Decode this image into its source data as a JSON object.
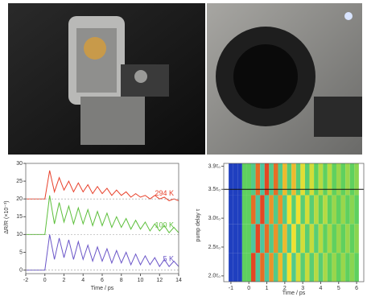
{
  "chart_data": [
    {
      "type": "line",
      "ylabel": "ΔR/R (×10⁻³)",
      "xlabel": "Time / ps",
      "xlim": [
        -2,
        14
      ],
      "xticks": [
        -2,
        0,
        2,
        4,
        6,
        8,
        10,
        12,
        14
      ],
      "ylim": [
        -1,
        30
      ],
      "yticks": [
        0,
        5,
        10,
        15,
        20,
        25,
        30
      ],
      "reference_lines": [
        20,
        10,
        0
      ],
      "x": [
        -2,
        -1.5,
        -1,
        -0.5,
        0,
        0.5,
        1,
        1.5,
        2,
        2.5,
        3,
        3.5,
        4,
        4.5,
        5,
        5.5,
        6,
        6.5,
        7,
        7.5,
        8,
        8.5,
        9,
        9.5,
        10,
        10.5,
        11,
        11.5,
        12,
        12.5,
        13,
        13.5,
        14
      ],
      "series": [
        {
          "name": "294 K",
          "color": "#e8402a",
          "values": [
            20,
            20,
            20,
            20,
            20,
            28,
            22,
            26,
            22.5,
            25,
            22,
            24.5,
            22,
            24,
            21.5,
            23.5,
            21.5,
            23,
            21,
            22.5,
            21,
            22,
            20.5,
            21.5,
            20.5,
            21,
            20,
            21,
            20,
            20.5,
            19.5,
            20,
            19.5
          ]
        },
        {
          "name": "100 K",
          "color": "#5cbf3a",
          "values": [
            10,
            10,
            10,
            10,
            10,
            21,
            13,
            19,
            13.5,
            18,
            13,
            17.5,
            13,
            17,
            12.5,
            16.5,
            12.5,
            16,
            12,
            15,
            12,
            14.5,
            11.5,
            14,
            11.5,
            13.5,
            11,
            13,
            11,
            12.5,
            10.5,
            12,
            10.5
          ]
        },
        {
          "name": "5 K",
          "color": "#6a55c8",
          "values": [
            0,
            0,
            0,
            0,
            0,
            10,
            3,
            9,
            3.5,
            8.5,
            3,
            8,
            3,
            7,
            2.5,
            6.5,
            2.5,
            6,
            2,
            5.5,
            2,
            5,
            1.5,
            4.5,
            1.5,
            4,
            1.5,
            3.5,
            1,
            3,
            1,
            2.5,
            1
          ]
        }
      ]
    },
    {
      "type": "heatmap",
      "ylabel": "pump delay τ",
      "xlabel": "Time / ps",
      "xlim": [
        -1.4,
        6.4
      ],
      "xticks": [
        -1,
        0,
        1,
        2,
        3,
        4,
        5,
        6
      ],
      "ylim": [
        1.9,
        3.95
      ],
      "yticks": [
        {
          "value": 2.0,
          "label": "2.0τ₀"
        },
        {
          "value": 2.5,
          "label": "2.5τ₀"
        },
        {
          "value": 3.0,
          "label": "3.0τ₀"
        },
        {
          "value": 3.5,
          "label": "3.5τ₀"
        },
        {
          "value": 3.9,
          "label": "3.9τ₀"
        }
      ],
      "reference_lines": [
        3.5
      ],
      "colormap": [
        "#1f3fbf",
        "#3fc0c8",
        "#5fd05f",
        "#f0e030",
        "#e02020"
      ],
      "zlim": [
        -1,
        1
      ],
      "x": [
        -1,
        -0.75,
        -0.5,
        -0.25,
        0,
        0.25,
        0.5,
        0.75,
        1,
        1.25,
        1.5,
        1.75,
        2,
        2.25,
        2.5,
        2.75,
        3,
        3.25,
        3.5,
        3.75,
        4,
        4.25,
        4.5,
        4.75,
        5,
        5.25,
        5.5,
        5.75,
        6
      ],
      "ybins": [
        1.9,
        2.4,
        2.9,
        3.4,
        3.95
      ],
      "z": [
        [
          -1,
          -1,
          -1,
          0,
          0,
          0.9,
          -0.3,
          0.8,
          -0.3,
          0.7,
          -0.2,
          0.6,
          -0.2,
          0.5,
          -0.2,
          0.4,
          -0.1,
          0.35,
          -0.1,
          0.3,
          -0.1,
          0.25,
          0,
          0.2,
          0,
          0.2,
          0,
          0.15,
          0
        ],
        [
          -1,
          -1,
          -1,
          0,
          0,
          -0.3,
          0.9,
          -0.3,
          0.8,
          -0.2,
          0.7,
          -0.2,
          0.6,
          -0.2,
          0.5,
          -0.1,
          0.4,
          -0.1,
          0.35,
          -0.1,
          0.3,
          0,
          0.25,
          0,
          0.2,
          0,
          0.2,
          0,
          0.15
        ],
        [
          -1,
          -1,
          -1,
          0,
          0,
          0.8,
          -0.3,
          0.9,
          -0.3,
          0.7,
          -0.2,
          0.7,
          -0.2,
          0.5,
          -0.1,
          0.5,
          -0.1,
          0.4,
          -0.1,
          0.3,
          0,
          0.3,
          0,
          0.2,
          0,
          0.2,
          0,
          0.15,
          0
        ],
        [
          -1,
          -1,
          -1,
          0,
          0,
          -0.2,
          0.8,
          -0.3,
          0.9,
          -0.2,
          0.8,
          -0.2,
          0.6,
          -0.1,
          0.6,
          -0.1,
          0.45,
          -0.1,
          0.4,
          0,
          0.3,
          0,
          0.3,
          0,
          0.2,
          0,
          0.2,
          0,
          0.15
        ]
      ]
    }
  ]
}
